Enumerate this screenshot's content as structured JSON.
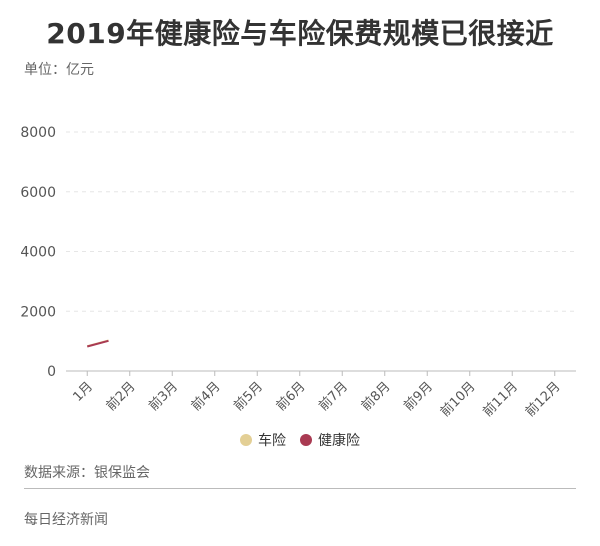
{
  "header": {
    "title": "2019年健康险与车险保费规模已很接近",
    "unit": "单位：亿元"
  },
  "chart_data": {
    "type": "line",
    "categories": [
      "1月",
      "前2月",
      "前3月",
      "前4月",
      "前5月",
      "前6月",
      "前7月",
      "前8月",
      "前9月",
      "前10月",
      "前11月",
      "前12月"
    ],
    "series": [
      {
        "name": "车险",
        "values": [
          830,
          1020,
          null,
          null,
          null,
          null,
          null,
          null,
          null,
          null,
          null,
          null
        ]
      },
      {
        "name": "健康险",
        "values": [
          820,
          1010,
          null,
          null,
          null,
          null,
          null,
          null,
          null,
          null,
          null,
          null
        ]
      }
    ],
    "yticks": [
      0,
      2000,
      4000,
      6000,
      8000
    ],
    "ylim": [
      0,
      8000
    ],
    "grid": true,
    "legend_position": "bottom",
    "colors": {
      "车险": "#e3cf95",
      "健康险": "#a93a52"
    }
  },
  "footer": {
    "source": "数据来源：银保监会",
    "publisher": "每日经济新闻"
  }
}
